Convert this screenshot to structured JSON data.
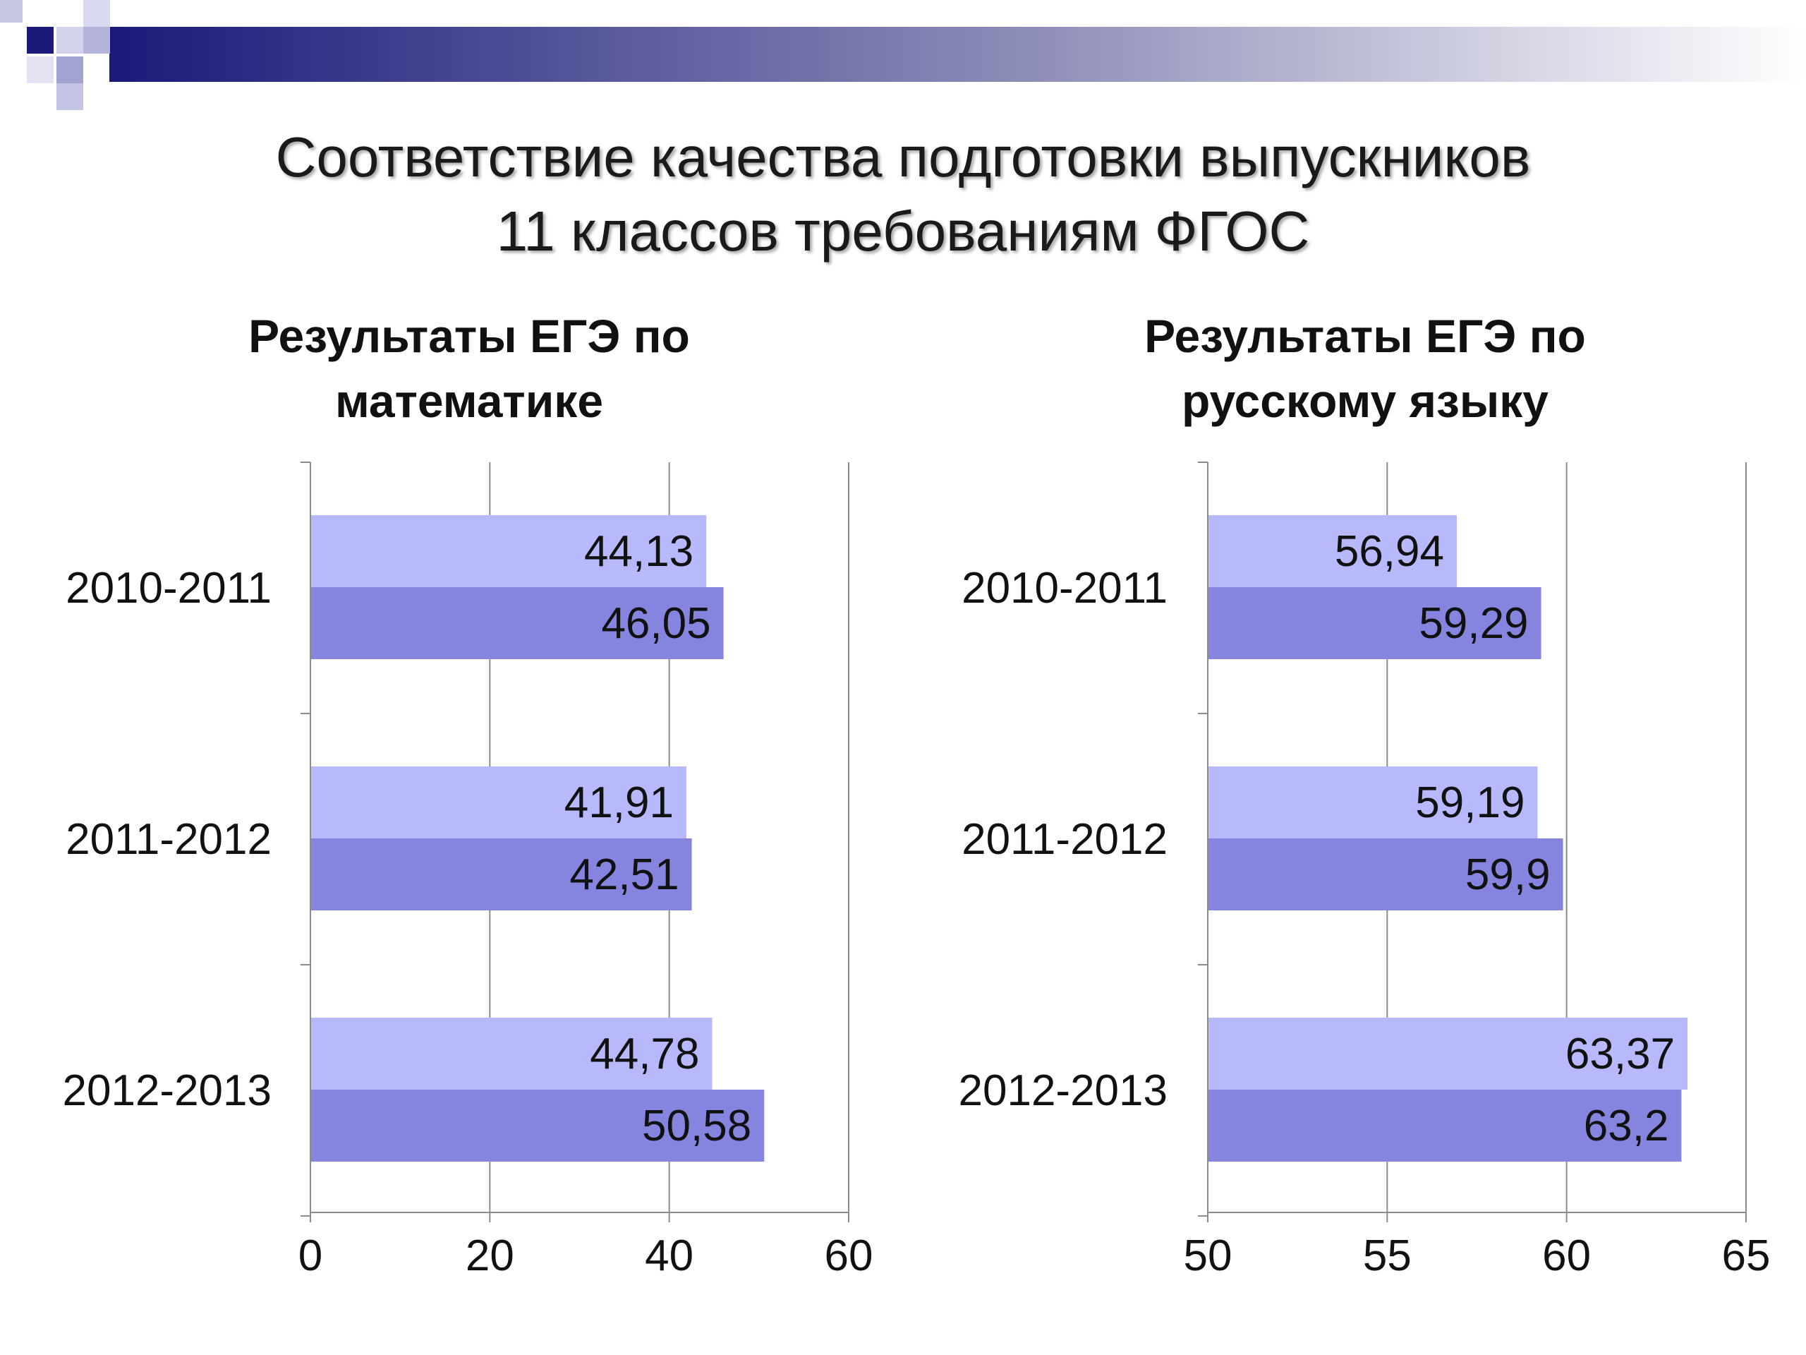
{
  "slide": {
    "title_line1": "Соответствие качества подготовки выпускников",
    "title_line2": "11 классов требованиям ФГОС"
  },
  "colors": {
    "bar_light": "#b8b8fc",
    "bar_dark": "#8585e0",
    "decor_navy": "#1a1a7a"
  },
  "chart_data": [
    {
      "type": "bar",
      "orientation": "horizontal",
      "title_line1": "Результаты ЕГЭ по",
      "title_line2": "математике",
      "categories": [
        "2010-2011",
        "2011-2012",
        "2012-2013"
      ],
      "series": [
        {
          "values": [
            44.13,
            41.91,
            44.78
          ],
          "labels": [
            "44,13",
            "41,91",
            "44,78"
          ]
        },
        {
          "values": [
            46.05,
            42.51,
            50.58
          ],
          "labels": [
            "46,05",
            "42,51",
            "50,58"
          ]
        }
      ],
      "xlim": [
        0,
        60
      ],
      "ticks": [
        0,
        20,
        40,
        60
      ],
      "tick_labels": [
        "0",
        "20",
        "40",
        "60"
      ],
      "grid": true
    },
    {
      "type": "bar",
      "orientation": "horizontal",
      "title_line1": "Результаты ЕГЭ по",
      "title_line2": "русскому языку",
      "categories": [
        "2010-2011",
        "2011-2012",
        "2012-2013"
      ],
      "series": [
        {
          "values": [
            56.94,
            59.19,
            63.37
          ],
          "labels": [
            "56,94",
            "59,19",
            "63,37"
          ]
        },
        {
          "values": [
            59.29,
            59.9,
            63.2
          ],
          "labels": [
            "59,29",
            "59,9",
            "63,2"
          ]
        }
      ],
      "xlim": [
        50,
        65
      ],
      "ticks": [
        50,
        55,
        60,
        65
      ],
      "tick_labels": [
        "50",
        "55",
        "60",
        "65"
      ],
      "grid": true
    }
  ]
}
